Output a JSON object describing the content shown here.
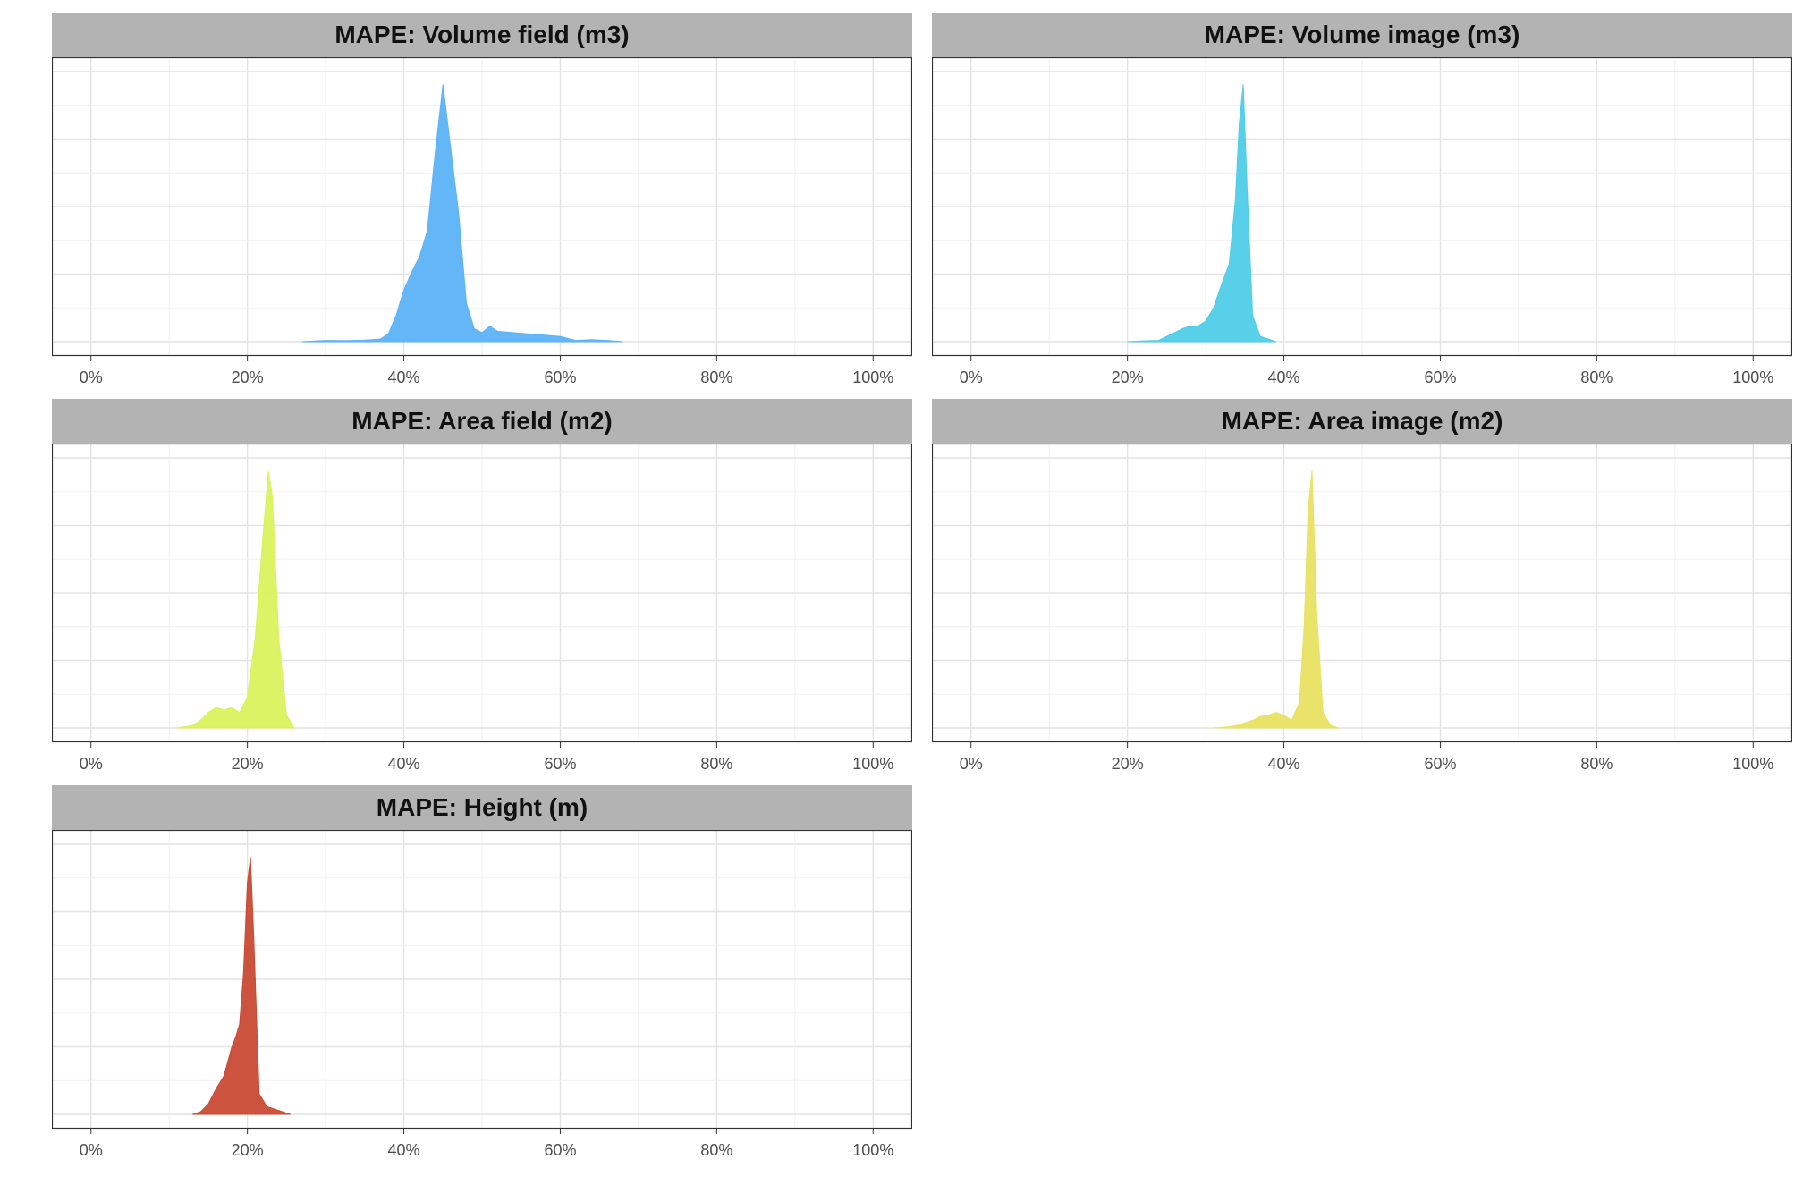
{
  "chart_data": [
    {
      "type": "area",
      "title": "MAPE: Volume field (m3)",
      "color": "#5CB3F7",
      "xlim": [
        -5,
        105
      ],
      "xticks": [
        "0%",
        "20%",
        "40%",
        "60%",
        "80%",
        "100%"
      ],
      "x": [
        27,
        30,
        33,
        35,
        37,
        38,
        39,
        40,
        41,
        42,
        43,
        44,
        45,
        46,
        47,
        48,
        49,
        50,
        51,
        52,
        54,
        56,
        58,
        60,
        62,
        64,
        66,
        68
      ],
      "y": [
        0.0,
        0.005,
        0.004,
        0.006,
        0.01,
        0.03,
        0.1,
        0.2,
        0.27,
        0.33,
        0.43,
        0.73,
        1.0,
        0.75,
        0.5,
        0.15,
        0.05,
        0.035,
        0.06,
        0.04,
        0.035,
        0.03,
        0.025,
        0.02,
        0.005,
        0.008,
        0.005,
        0.0
      ]
    },
    {
      "type": "area",
      "title": "MAPE: Volume image (m3)",
      "color": "#4FCDE8",
      "xlim": [
        -5,
        105
      ],
      "xticks": [
        "0%",
        "20%",
        "40%",
        "60%",
        "80%",
        "100%"
      ],
      "x": [
        20,
        22,
        24,
        25,
        26,
        27,
        28,
        29,
        30,
        31,
        32,
        33,
        33.8,
        34.3,
        34.8,
        35.3,
        36,
        37,
        38,
        39
      ],
      "y": [
        0.0,
        0.003,
        0.005,
        0.02,
        0.035,
        0.05,
        0.06,
        0.06,
        0.08,
        0.13,
        0.22,
        0.3,
        0.55,
        0.85,
        1.0,
        0.6,
        0.1,
        0.02,
        0.01,
        0.0
      ]
    },
    {
      "type": "area",
      "title": "MAPE: Area field (m2)",
      "color": "#D9F25C",
      "xlim": [
        -5,
        105
      ],
      "xticks": [
        "0%",
        "20%",
        "40%",
        "60%",
        "80%",
        "100%"
      ],
      "x": [
        11,
        13,
        14,
        15,
        16,
        17,
        18,
        19,
        20,
        21,
        22,
        22.7,
        23.2,
        24,
        25,
        26
      ],
      "y": [
        0.0,
        0.01,
        0.03,
        0.06,
        0.08,
        0.07,
        0.08,
        0.06,
        0.12,
        0.35,
        0.75,
        1.0,
        0.9,
        0.35,
        0.05,
        0.0
      ]
    },
    {
      "type": "area",
      "title": "MAPE: Area image (m2)",
      "color": "#E8E262",
      "xlim": [
        -5,
        105
      ],
      "xticks": [
        "0%",
        "20%",
        "40%",
        "60%",
        "80%",
        "100%"
      ],
      "x": [
        31,
        33,
        34,
        35,
        36,
        37,
        38,
        39,
        40,
        41,
        42,
        42.6,
        43.1,
        43.6,
        44.2,
        45,
        46,
        47
      ],
      "y": [
        0.0,
        0.005,
        0.01,
        0.02,
        0.03,
        0.045,
        0.05,
        0.06,
        0.05,
        0.03,
        0.1,
        0.4,
        0.85,
        1.0,
        0.45,
        0.06,
        0.01,
        0.0
      ]
    },
    {
      "type": "area",
      "title": "MAPE: Height (m)",
      "color": "#C94B34",
      "xlim": [
        -5,
        105
      ],
      "xticks": [
        "0%",
        "20%",
        "40%",
        "60%",
        "80%",
        "100%"
      ],
      "x": [
        13,
        14,
        15,
        16,
        17,
        18,
        18.5,
        19,
        19.5,
        20,
        20.4,
        20.8,
        21.5,
        22.5,
        23.5,
        24.5,
        25.5
      ],
      "y": [
        0.0,
        0.01,
        0.04,
        0.1,
        0.15,
        0.26,
        0.3,
        0.35,
        0.55,
        0.9,
        1.0,
        0.7,
        0.08,
        0.03,
        0.02,
        0.01,
        0.0
      ]
    }
  ]
}
